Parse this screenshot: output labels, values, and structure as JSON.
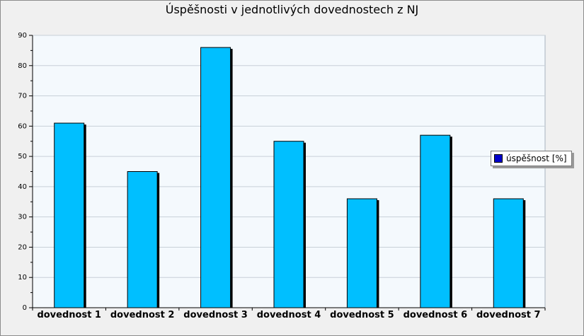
{
  "chart_data": {
    "type": "bar",
    "title": "Úspěšnosti v jednotlivých dovednostech z NJ",
    "categories": [
      "dovednost 1",
      "dovednost 2",
      "dovednost 3",
      "dovednost 4",
      "dovednost 5",
      "dovednost 6",
      "dovednost 7"
    ],
    "series": [
      {
        "name": "úspěšnost [%]",
        "values": [
          61,
          45,
          86,
          55,
          36,
          57,
          36
        ]
      }
    ],
    "ylim": [
      0,
      90
    ],
    "yticks": [
      "0",
      "10",
      "20",
      "30",
      "40",
      "50",
      "60",
      "70",
      "80",
      "90"
    ],
    "grid": true,
    "legend_position": "right",
    "colors": {
      "bar_fill": "#00bfff",
      "legend_swatch": "#0000cc",
      "plot_background": "#f4f9fd",
      "gridline": "#c8d0d8"
    }
  }
}
